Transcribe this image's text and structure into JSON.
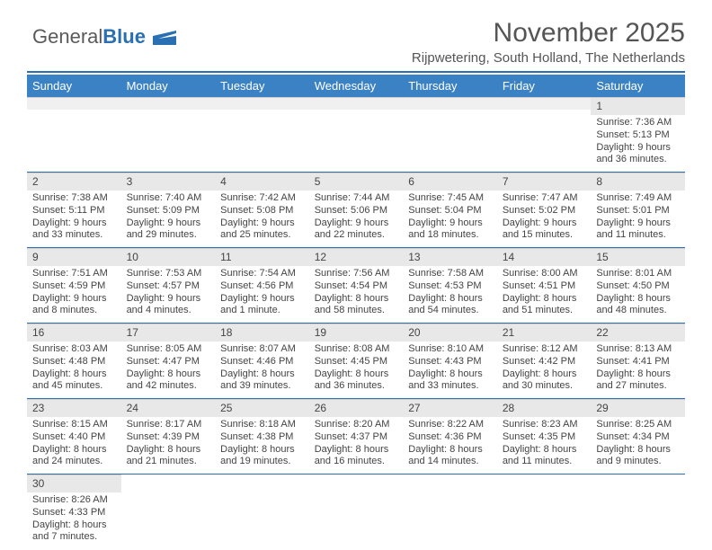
{
  "logo": {
    "part1": "General",
    "part2": "Blue"
  },
  "title": "November 2025",
  "subtitle": "Rijpwetering, South Holland, The Netherlands",
  "colors": {
    "header_bg": "#3b82c4",
    "header_text": "#ffffff",
    "accent_line": "#2b6fb3",
    "daynum_bg": "#e8e8e8",
    "logo_gray": "#5a5a5a",
    "logo_blue": "#2b6fb3"
  },
  "dayHeaders": [
    "Sunday",
    "Monday",
    "Tuesday",
    "Wednesday",
    "Thursday",
    "Friday",
    "Saturday"
  ],
  "weeks": [
    [
      null,
      null,
      null,
      null,
      null,
      null,
      {
        "n": "1",
        "sr": "7:36 AM",
        "ss": "5:13 PM",
        "dl": "9 hours and 36 minutes."
      }
    ],
    [
      {
        "n": "2",
        "sr": "7:38 AM",
        "ss": "5:11 PM",
        "dl": "9 hours and 33 minutes."
      },
      {
        "n": "3",
        "sr": "7:40 AM",
        "ss": "5:09 PM",
        "dl": "9 hours and 29 minutes."
      },
      {
        "n": "4",
        "sr": "7:42 AM",
        "ss": "5:08 PM",
        "dl": "9 hours and 25 minutes."
      },
      {
        "n": "5",
        "sr": "7:44 AM",
        "ss": "5:06 PM",
        "dl": "9 hours and 22 minutes."
      },
      {
        "n": "6",
        "sr": "7:45 AM",
        "ss": "5:04 PM",
        "dl": "9 hours and 18 minutes."
      },
      {
        "n": "7",
        "sr": "7:47 AM",
        "ss": "5:02 PM",
        "dl": "9 hours and 15 minutes."
      },
      {
        "n": "8",
        "sr": "7:49 AM",
        "ss": "5:01 PM",
        "dl": "9 hours and 11 minutes."
      }
    ],
    [
      {
        "n": "9",
        "sr": "7:51 AM",
        "ss": "4:59 PM",
        "dl": "9 hours and 8 minutes."
      },
      {
        "n": "10",
        "sr": "7:53 AM",
        "ss": "4:57 PM",
        "dl": "9 hours and 4 minutes."
      },
      {
        "n": "11",
        "sr": "7:54 AM",
        "ss": "4:56 PM",
        "dl": "9 hours and 1 minute."
      },
      {
        "n": "12",
        "sr": "7:56 AM",
        "ss": "4:54 PM",
        "dl": "8 hours and 58 minutes."
      },
      {
        "n": "13",
        "sr": "7:58 AM",
        "ss": "4:53 PM",
        "dl": "8 hours and 54 minutes."
      },
      {
        "n": "14",
        "sr": "8:00 AM",
        "ss": "4:51 PM",
        "dl": "8 hours and 51 minutes."
      },
      {
        "n": "15",
        "sr": "8:01 AM",
        "ss": "4:50 PM",
        "dl": "8 hours and 48 minutes."
      }
    ],
    [
      {
        "n": "16",
        "sr": "8:03 AM",
        "ss": "4:48 PM",
        "dl": "8 hours and 45 minutes."
      },
      {
        "n": "17",
        "sr": "8:05 AM",
        "ss": "4:47 PM",
        "dl": "8 hours and 42 minutes."
      },
      {
        "n": "18",
        "sr": "8:07 AM",
        "ss": "4:46 PM",
        "dl": "8 hours and 39 minutes."
      },
      {
        "n": "19",
        "sr": "8:08 AM",
        "ss": "4:45 PM",
        "dl": "8 hours and 36 minutes."
      },
      {
        "n": "20",
        "sr": "8:10 AM",
        "ss": "4:43 PM",
        "dl": "8 hours and 33 minutes."
      },
      {
        "n": "21",
        "sr": "8:12 AM",
        "ss": "4:42 PM",
        "dl": "8 hours and 30 minutes."
      },
      {
        "n": "22",
        "sr": "8:13 AM",
        "ss": "4:41 PM",
        "dl": "8 hours and 27 minutes."
      }
    ],
    [
      {
        "n": "23",
        "sr": "8:15 AM",
        "ss": "4:40 PM",
        "dl": "8 hours and 24 minutes."
      },
      {
        "n": "24",
        "sr": "8:17 AM",
        "ss": "4:39 PM",
        "dl": "8 hours and 21 minutes."
      },
      {
        "n": "25",
        "sr": "8:18 AM",
        "ss": "4:38 PM",
        "dl": "8 hours and 19 minutes."
      },
      {
        "n": "26",
        "sr": "8:20 AM",
        "ss": "4:37 PM",
        "dl": "8 hours and 16 minutes."
      },
      {
        "n": "27",
        "sr": "8:22 AM",
        "ss": "4:36 PM",
        "dl": "8 hours and 14 minutes."
      },
      {
        "n": "28",
        "sr": "8:23 AM",
        "ss": "4:35 PM",
        "dl": "8 hours and 11 minutes."
      },
      {
        "n": "29",
        "sr": "8:25 AM",
        "ss": "4:34 PM",
        "dl": "8 hours and 9 minutes."
      }
    ],
    [
      {
        "n": "30",
        "sr": "8:26 AM",
        "ss": "4:33 PM",
        "dl": "8 hours and 7 minutes."
      },
      null,
      null,
      null,
      null,
      null,
      null
    ]
  ],
  "labels": {
    "sunrise": "Sunrise: ",
    "sunset": "Sunset: ",
    "daylight": "Daylight: "
  }
}
